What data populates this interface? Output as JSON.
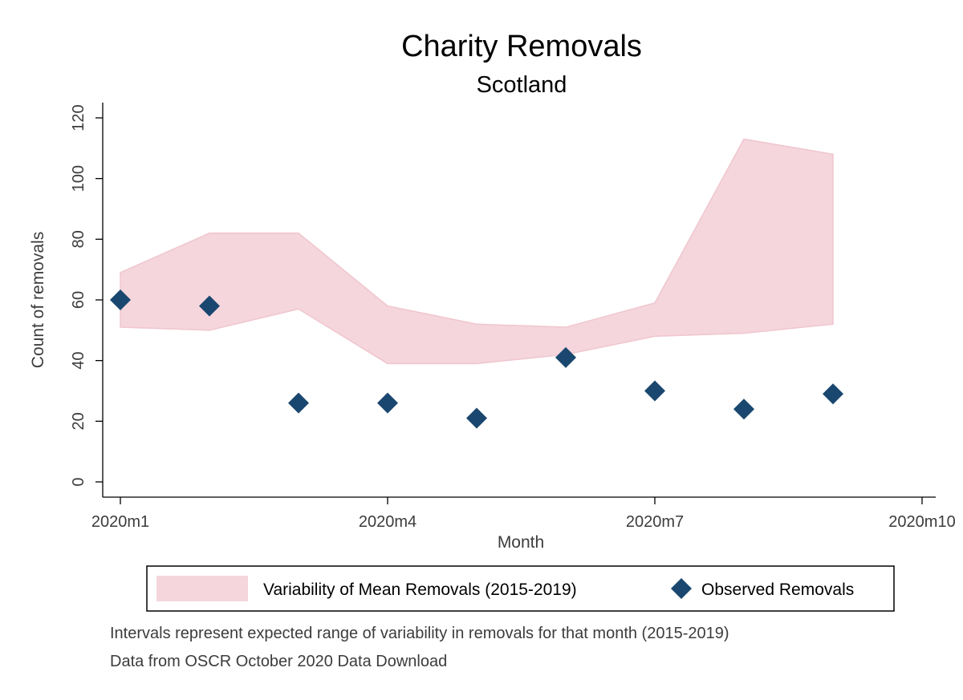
{
  "chart_data": {
    "type": "scatter",
    "title": "Charity Removals",
    "subtitle": "Scotland",
    "xlabel": "Month",
    "ylabel": "Count of removals",
    "x_tick_labels": [
      "2020m1",
      "2020m4",
      "2020m7",
      "2020m10"
    ],
    "y_ticks": [
      0,
      20,
      40,
      60,
      80,
      100,
      120
    ],
    "xlim": [
      "2020m1",
      "2020m10"
    ],
    "ylim": [
      0,
      120
    ],
    "grid": false,
    "legend_position": "bottom",
    "categories": [
      "2020m1",
      "2020m2",
      "2020m3",
      "2020m4",
      "2020m5",
      "2020m6",
      "2020m7",
      "2020m8",
      "2020m9"
    ],
    "band": {
      "name": "Variability of Mean Removals (2015-2019)",
      "lower": [
        51,
        50,
        57,
        39,
        39,
        42,
        48,
        49,
        52
      ],
      "upper": [
        69,
        82,
        82,
        58,
        52,
        51,
        59,
        113,
        108
      ],
      "color": "#f4d6dc"
    },
    "series": [
      {
        "name": "Observed Removals",
        "values": [
          60,
          58,
          26,
          26,
          21,
          41,
          30,
          24,
          29
        ],
        "color": "#1a476f"
      }
    ],
    "notes": [
      "Intervals represent expected range of variability in removals for that month (2015-2019)",
      "Data from OSCR October 2020 Data Download"
    ]
  }
}
